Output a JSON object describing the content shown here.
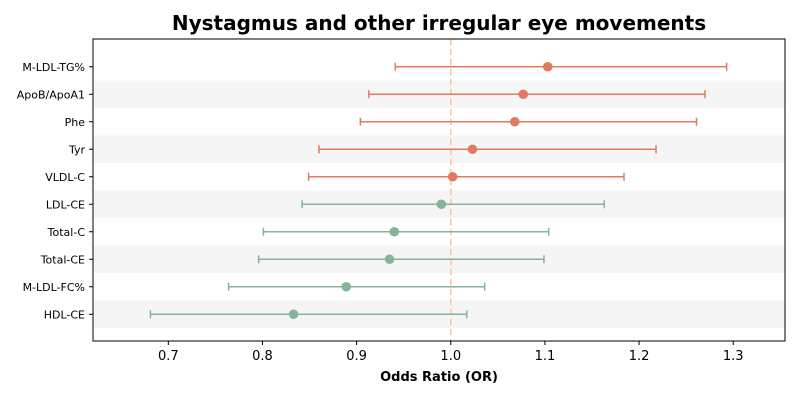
{
  "chart_data": {
    "type": "forest",
    "title": "Nystagmus and other irregular eye movements",
    "xlabel": "Odds Ratio (OR)",
    "xlim": [
      0.62,
      1.355
    ],
    "xticks": [
      "0.7",
      "0.8",
      "0.9",
      "1.0",
      "1.1",
      "1.2",
      "1.3"
    ],
    "reference_line": 1.0,
    "colors": {
      "above": "#E07B5F",
      "below": "#84B59B",
      "reference": "#F5C78A",
      "stripe": "#F5F5F5"
    },
    "rows": [
      {
        "label": "M-LDL-TG%",
        "or": 1.103,
        "lower": 0.941,
        "upper": 1.293
      },
      {
        "label": "ApoB/ApoA1",
        "or": 1.077,
        "lower": 0.913,
        "upper": 1.27
      },
      {
        "label": "Phe",
        "or": 1.068,
        "lower": 0.904,
        "upper": 1.261
      },
      {
        "label": "Tyr",
        "or": 1.023,
        "lower": 0.86,
        "upper": 1.218
      },
      {
        "label": "VLDL-C",
        "or": 1.002,
        "lower": 0.849,
        "upper": 1.184
      },
      {
        "label": "LDL-CE",
        "or": 0.99,
        "lower": 0.842,
        "upper": 1.163
      },
      {
        "label": "Total-C",
        "or": 0.94,
        "lower": 0.801,
        "upper": 1.104
      },
      {
        "label": "Total-CE",
        "or": 0.935,
        "lower": 0.796,
        "upper": 1.099
      },
      {
        "label": "M-LDL-FC%",
        "or": 0.889,
        "lower": 0.764,
        "upper": 1.036
      },
      {
        "label": "HDL-CE",
        "or": 0.833,
        "lower": 0.681,
        "upper": 1.017
      }
    ]
  }
}
